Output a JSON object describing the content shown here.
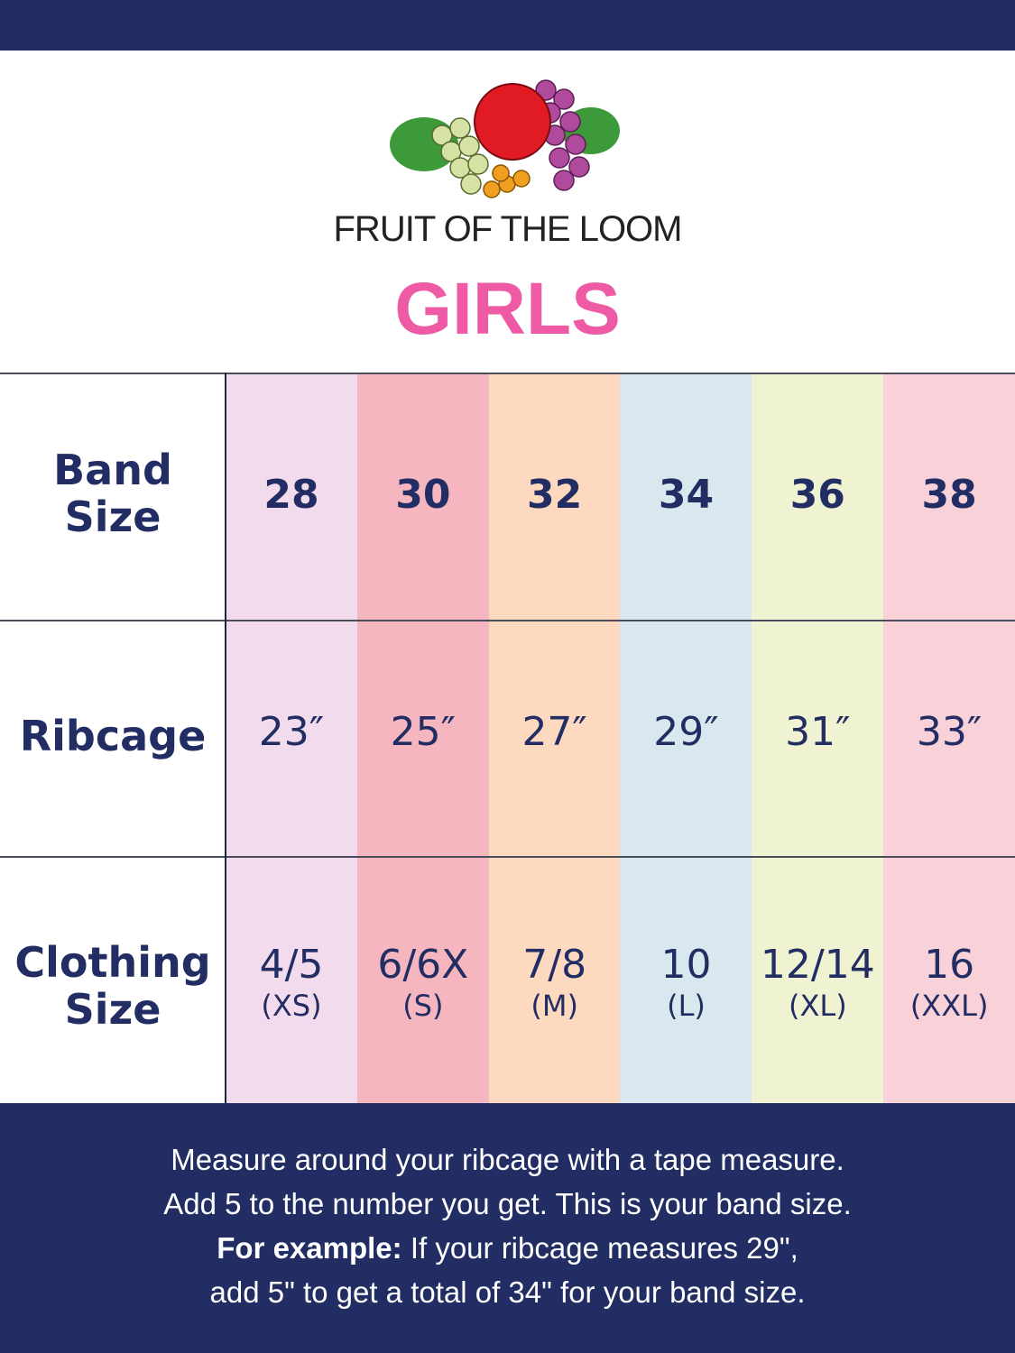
{
  "brand": {
    "logo_text": "FRUIT OF THE LOOM"
  },
  "title": "GIRLS",
  "table": {
    "row_labels": [
      "Band Size",
      "Ribcage",
      "Clothing Size"
    ],
    "columns": [
      {
        "band": "28",
        "ribcage": "23″",
        "size": "4/5",
        "size_code": "(XS)",
        "color": "#f2dbed"
      },
      {
        "band": "30",
        "ribcage": "25″",
        "size": "6/6X",
        "size_code": "(S)",
        "color": "#f5b6bf"
      },
      {
        "band": "32",
        "ribcage": "27″",
        "size": "7/8",
        "size_code": "(M)",
        "color": "#fcd9bf"
      },
      {
        "band": "34",
        "ribcage": "29″",
        "size": "10",
        "size_code": "(L)",
        "color": "#d9e7ee"
      },
      {
        "band": "36",
        "ribcage": "31″",
        "size": "12/14",
        "size_code": "(XL)",
        "color": "#eff3d2"
      },
      {
        "band": "38",
        "ribcage": "33″",
        "size": "16",
        "size_code": "(XXL)",
        "color": "#f8d1d9"
      }
    ]
  },
  "footer": {
    "line1": "Measure around your ribcage with a tape measure.",
    "line2": "Add 5 to the number you get. This is your band size.",
    "example_label": "For example:",
    "line3": " If your ribcage measures 29\",",
    "line4": "add 5\" to get a total of 34\" for your band size."
  },
  "colors": {
    "navy": "#222d63",
    "title_pink": "#ee5ba4"
  }
}
